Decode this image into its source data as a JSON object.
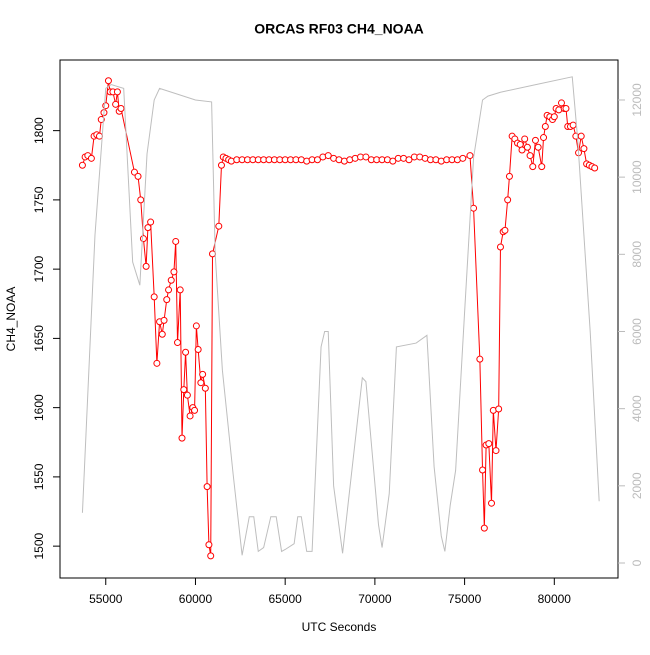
{
  "chart_data": {
    "type": "line",
    "title": "ORCAS RF03 CH4_NOAA",
    "x_label": "UTC Seconds",
    "y_label": "CH4_NOAA",
    "xlim": [
      52450,
      83550
    ],
    "xticks": [
      55000,
      60000,
      65000,
      70000,
      75000,
      80000
    ],
    "ylim": [
      1477,
      1851
    ],
    "yticks": [
      1500,
      1550,
      1600,
      1650,
      1700,
      1750,
      1800
    ],
    "y2lim": [
      -389,
      13036
    ],
    "y2ticks": [
      0,
      2000,
      4000,
      6000,
      8000,
      10000,
      12000
    ],
    "y2color": "#bbbbbb",
    "series": [
      {
        "color": "#ff0000",
        "marker": "circle",
        "x": [
          53700,
          53850,
          54000,
          54200,
          54350,
          54500,
          54650,
          54750,
          54900,
          55000,
          55150,
          55250,
          55400,
          55550,
          55650,
          55750,
          55850,
          56600,
          56800,
          56950,
          57100,
          57250,
          57350,
          57500,
          57700,
          57850,
          58000,
          58150,
          58250,
          58400,
          58500,
          58650,
          58800,
          58900,
          59000,
          59150,
          59250,
          59350,
          59450,
          59550,
          59700,
          59850,
          59950,
          60050,
          60150,
          60300,
          60400,
          60550,
          60650,
          60750,
          60850,
          60950,
          61300,
          61450,
          61550,
          61700,
          61850,
          62000,
          62300,
          62600,
          62900,
          63200,
          63500,
          63800,
          64100,
          64400,
          64700,
          65000,
          65300,
          65600,
          65900,
          66200,
          66500,
          66800,
          67100,
          67400,
          67700,
          68000,
          68300,
          68600,
          68900,
          69200,
          69500,
          69800,
          70100,
          70400,
          70700,
          71000,
          71300,
          71600,
          71900,
          72200,
          72500,
          72800,
          73100,
          73400,
          73700,
          74000,
          74300,
          74600,
          74900,
          75300,
          75500,
          75850,
          76000,
          76100,
          76200,
          76350,
          76500,
          76600,
          76750,
          76900,
          77000,
          77150,
          77250,
          77400,
          77500,
          77650,
          77800,
          77950,
          78100,
          78200,
          78350,
          78500,
          78650,
          78800,
          78950,
          79100,
          79300,
          79400,
          79500,
          79600,
          79750,
          79900,
          80000,
          80100,
          80250,
          80400,
          80550,
          80650,
          80750,
          80900,
          81050,
          81200,
          81350,
          81500,
          81650,
          81800,
          81950,
          82100,
          82250
        ],
        "values": [
          1775,
          1781,
          1782,
          1780,
          1796,
          1797,
          1796,
          1808,
          1813,
          1818,
          1836,
          1828,
          1828,
          1819,
          1828,
          1814,
          1816,
          1770,
          1767,
          1750,
          1722,
          1702,
          1730,
          1734,
          1680,
          1632,
          1662,
          1653,
          1663,
          1678,
          1685,
          1692,
          1698,
          1720,
          1647,
          1685,
          1578,
          1613,
          1640,
          1609,
          1594,
          1600,
          1598,
          1659,
          1642,
          1618,
          1624,
          1614,
          1543,
          1501,
          1493,
          1711,
          1731,
          1775,
          1781,
          1780,
          1779,
          1778,
          1779,
          1779,
          1779,
          1779,
          1779,
          1779,
          1779,
          1779,
          1779,
          1779,
          1779,
          1779,
          1779,
          1778,
          1779,
          1779,
          1781,
          1782,
          1780,
          1779,
          1778,
          1779,
          1780,
          1781,
          1781,
          1779,
          1779,
          1779,
          1779,
          1778,
          1780,
          1780,
          1779,
          1781,
          1781,
          1780,
          1779,
          1779,
          1778,
          1779,
          1779,
          1779,
          1780,
          1782,
          1744,
          1635,
          1555,
          1513,
          1573,
          1574,
          1531,
          1598,
          1569,
          1599,
          1716,
          1727,
          1728,
          1750,
          1767,
          1796,
          1794,
          1791,
          1790,
          1786,
          1794,
          1788,
          1782,
          1774,
          1793,
          1788,
          1774,
          1795,
          1803,
          1811,
          1810,
          1808,
          1810,
          1816,
          1815,
          1820,
          1816,
          1816,
          1803,
          1803,
          1804,
          1796,
          1784,
          1796,
          1787,
          1776,
          1775,
          1774,
          1773
        ]
      },
      {
        "color": "#bebebe",
        "axis": "y2",
        "x": [
          53700,
          54400,
          55000,
          55300,
          56000,
          56500,
          56900,
          57300,
          57700,
          58000,
          60000,
          60900,
          61100,
          61500,
          62100,
          62600,
          63000,
          63250,
          63500,
          63800,
          64200,
          64500,
          64800,
          65000,
          65500,
          65700,
          65900,
          66200,
          66500,
          67000,
          67200,
          67400,
          67700,
          68200,
          68500,
          69300,
          69500,
          70200,
          70400,
          70800,
          71200,
          72300,
          72900,
          73300,
          73700,
          73900,
          74200,
          74500,
          75000,
          75500,
          76000,
          76300,
          77000,
          79000,
          81000,
          81300,
          82000,
          82500
        ],
        "values": [
          1300,
          8500,
          12300,
          12400,
          12300,
          7800,
          7200,
          10600,
          12000,
          12300,
          12000,
          11950,
          8000,
          5000,
          2300,
          200,
          1200,
          1200,
          300,
          400,
          1200,
          1200,
          300,
          350,
          500,
          1200,
          1200,
          300,
          300,
          5600,
          6000,
          6000,
          2000,
          250,
          1500,
          4800,
          4700,
          1000,
          400,
          1800,
          5600,
          5700,
          5900,
          2500,
          700,
          300,
          1500,
          2400,
          6500,
          10500,
          12000,
          12100,
          12200,
          12400,
          12600,
          11000,
          6000,
          1600
        ]
      }
    ]
  }
}
